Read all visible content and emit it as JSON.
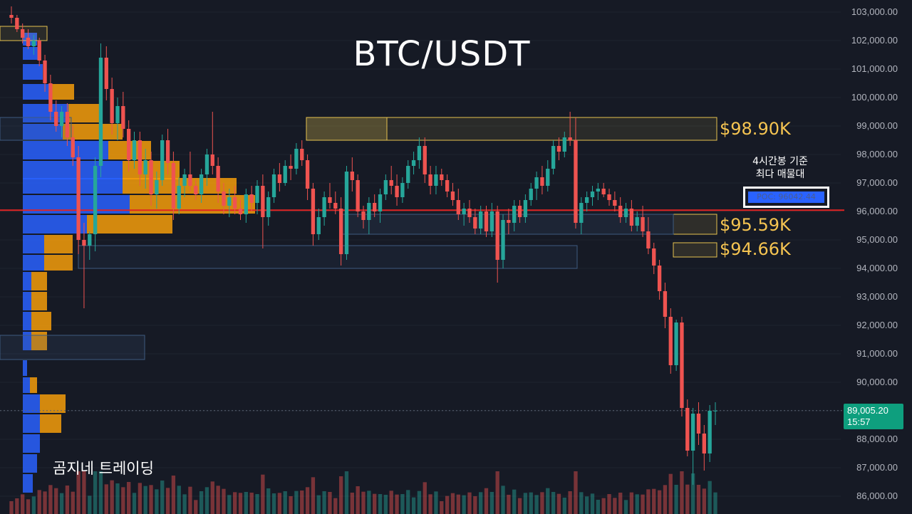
{
  "chart_data": {
    "type": "candlestick",
    "title": "BTC/USDT",
    "watermark": "곰지네 트레이딩",
    "price_axis": {
      "ylim": [
        85700,
        103300
      ],
      "ticks": [
        86000,
        87000,
        88000,
        89000,
        90000,
        91000,
        92000,
        93000,
        94000,
        95000,
        96000,
        97000,
        98000,
        99000,
        100000,
        101000,
        102000,
        103000
      ],
      "tick_labels": [
        "86,000.00",
        "87,000.00",
        "88,000.00",
        "89,000.00",
        "90,000.00",
        "91,000.00",
        "92,000.00",
        "93,000.00",
        "94,000.00",
        "95,000.00",
        "96,000.00",
        "97,000.00",
        "98,000.00",
        "99,000.00",
        "100,000.00",
        "101,000.00",
        "102,000.00",
        "103,000.00"
      ]
    },
    "current_price": {
      "value": 89005.2,
      "label": "89,005.20",
      "countdown": "15:57"
    },
    "poc": {
      "value": 96042.44,
      "label": "POC: 96042.44",
      "note_line1": "4시간봉 기준",
      "note_line2": "최다 매물대"
    },
    "zones": [
      {
        "label": "$98.90K",
        "from": 98500,
        "to": 99300
      },
      {
        "label": "$95.59K",
        "from": 95200,
        "to": 95900
      },
      {
        "label": "$94.66K",
        "from": 94400,
        "to": 94900
      }
    ],
    "candles": [
      [
        102900,
        103200,
        102600,
        102800
      ],
      [
        102800,
        102900,
        102300,
        102400
      ],
      [
        102400,
        102600,
        101900,
        102100
      ],
      [
        102100,
        102400,
        101700,
        101800
      ],
      [
        101800,
        102200,
        101500,
        102000
      ],
      [
        102000,
        102100,
        101100,
        101300
      ],
      [
        101300,
        101500,
        100200,
        100500
      ],
      [
        100500,
        100800,
        99200,
        99500
      ],
      [
        99500,
        99900,
        98800,
        99000
      ],
      [
        99000,
        99700,
        98600,
        99500
      ],
      [
        99500,
        99800,
        98300,
        98600
      ],
      [
        98600,
        99000,
        97600,
        97900
      ],
      [
        97900,
        98300,
        94500,
        95000
      ],
      [
        95000,
        95600,
        92600,
        94800
      ],
      [
        94800,
        95300,
        94300,
        95200
      ],
      [
        95200,
        97900,
        94600,
        97600
      ],
      [
        97600,
        101900,
        97200,
        101400
      ],
      [
        101400,
        101800,
        99900,
        100300
      ],
      [
        100300,
        100700,
        98700,
        99100
      ],
      [
        99100,
        100000,
        98500,
        99700
      ],
      [
        99700,
        100200,
        98600,
        98900
      ],
      [
        98900,
        99200,
        97400,
        97800
      ],
      [
        97800,
        98800,
        97500,
        98500
      ],
      [
        98500,
        98800,
        96900,
        97300
      ],
      [
        97300,
        98200,
        96800,
        97800
      ],
      [
        97800,
        98100,
        96200,
        96600
      ],
      [
        96600,
        97400,
        96100,
        97100
      ],
      [
        97100,
        98700,
        96900,
        98500
      ],
      [
        98500,
        98900,
        97300,
        97700
      ],
      [
        97700,
        98100,
        95700,
        96100
      ],
      [
        96100,
        97200,
        95900,
        96900
      ],
      [
        96900,
        97500,
        96500,
        97300
      ],
      [
        97300,
        98100,
        96700,
        96900
      ],
      [
        96900,
        97100,
        96400,
        96600
      ],
      [
        96600,
        97500,
        96300,
        97300
      ],
      [
        97300,
        98200,
        96900,
        98000
      ],
      [
        98000,
        99500,
        97300,
        97600
      ],
      [
        97600,
        97900,
        96300,
        96700
      ],
      [
        96700,
        97000,
        95900,
        96200
      ],
      [
        96200,
        96800,
        95800,
        96500
      ],
      [
        96500,
        96900,
        95900,
        96100
      ],
      [
        96100,
        96400,
        95700,
        95900
      ],
      [
        95900,
        96800,
        95600,
        96600
      ],
      [
        96600,
        96900,
        96000,
        96300
      ],
      [
        96300,
        97100,
        95900,
        96900
      ],
      [
        96900,
        97300,
        94700,
        95800
      ],
      [
        95800,
        96700,
        95500,
        96500
      ],
      [
        96500,
        97500,
        96300,
        97300
      ],
      [
        97300,
        97700,
        96700,
        97000
      ],
      [
        97000,
        97800,
        96900,
        97600
      ],
      [
        97600,
        98000,
        97100,
        97500
      ],
      [
        97500,
        98400,
        97300,
        98200
      ],
      [
        98200,
        98500,
        97600,
        97800
      ],
      [
        97800,
        98000,
        96400,
        96800
      ],
      [
        96800,
        97000,
        94800,
        95200
      ],
      [
        95200,
        96100,
        95000,
        95800
      ],
      [
        95800,
        96700,
        95500,
        96500
      ],
      [
        96500,
        97000,
        96100,
        96300
      ],
      [
        96300,
        96700,
        95900,
        96100
      ],
      [
        96100,
        96500,
        94100,
        94500
      ],
      [
        94500,
        97600,
        94300,
        97400
      ],
      [
        97400,
        97900,
        96700,
        97100
      ],
      [
        97100,
        97300,
        95800,
        96000
      ],
      [
        96000,
        96200,
        95400,
        95700
      ],
      [
        95700,
        96500,
        95200,
        96300
      ],
      [
        96300,
        96600,
        95800,
        96000
      ],
      [
        96000,
        96800,
        95600,
        96600
      ],
      [
        96600,
        97300,
        96400,
        97100
      ],
      [
        97100,
        97600,
        96600,
        96900
      ],
      [
        96900,
        97300,
        96200,
        96500
      ],
      [
        96500,
        97200,
        96300,
        97000
      ],
      [
        97000,
        97800,
        96800,
        97600
      ],
      [
        97600,
        98100,
        97300,
        97800
      ],
      [
        97800,
        98600,
        97500,
        98300
      ],
      [
        98300,
        98600,
        97000,
        97300
      ],
      [
        97300,
        97600,
        96600,
        96900
      ],
      [
        96900,
        97600,
        96600,
        97300
      ],
      [
        97300,
        97500,
        96900,
        97100
      ],
      [
        97100,
        97300,
        96500,
        96700
      ],
      [
        96700,
        97000,
        96200,
        96400
      ],
      [
        96400,
        96800,
        95700,
        95900
      ],
      [
        95900,
        96300,
        95500,
        96100
      ],
      [
        96100,
        96400,
        95600,
        95800
      ],
      [
        95800,
        96100,
        95200,
        95400
      ],
      [
        95400,
        96200,
        95200,
        96000
      ],
      [
        96000,
        96200,
        95100,
        95300
      ],
      [
        95300,
        96300,
        95100,
        96000
      ],
      [
        96000,
        96200,
        93500,
        94300
      ],
      [
        94300,
        95900,
        94000,
        95700
      ],
      [
        95700,
        96100,
        95200,
        95600
      ],
      [
        95600,
        96400,
        95300,
        96200
      ],
      [
        96200,
        96400,
        95600,
        95800
      ],
      [
        95800,
        96600,
        95600,
        96400
      ],
      [
        96400,
        97000,
        96200,
        96800
      ],
      [
        96800,
        97400,
        96400,
        97200
      ],
      [
        97200,
        97600,
        96600,
        96900
      ],
      [
        96900,
        97800,
        96700,
        97500
      ],
      [
        97500,
        98500,
        97300,
        98300
      ],
      [
        98300,
        98600,
        97800,
        98100
      ],
      [
        98100,
        98800,
        97900,
        98600
      ],
      [
        98600,
        99500,
        98300,
        98500
      ],
      [
        98500,
        99300,
        95400,
        95600
      ],
      [
        95600,
        96500,
        95200,
        96300
      ],
      [
        96300,
        96700,
        96000,
        96500
      ],
      [
        96500,
        96900,
        96200,
        96700
      ],
      [
        96700,
        97000,
        96400,
        96800
      ],
      [
        96800,
        97000,
        96500,
        96600
      ],
      [
        96600,
        96800,
        96200,
        96400
      ],
      [
        96400,
        96700,
        96000,
        96200
      ],
      [
        96200,
        96500,
        95600,
        95800
      ],
      [
        95800,
        96300,
        95600,
        96100
      ],
      [
        96100,
        96400,
        95300,
        95500
      ],
      [
        95500,
        96000,
        95300,
        95800
      ],
      [
        95800,
        96200,
        95100,
        95300
      ],
      [
        95300,
        95800,
        94500,
        94700
      ],
      [
        94700,
        94900,
        93800,
        94100
      ],
      [
        94100,
        94300,
        92900,
        93200
      ],
      [
        93200,
        93500,
        91900,
        92300
      ],
      [
        92300,
        92600,
        90300,
        90600
      ],
      [
        90600,
        92200,
        90400,
        92100
      ],
      [
        92100,
        92300,
        88800,
        89100
      ],
      [
        89100,
        89400,
        87400,
        87600
      ],
      [
        87600,
        89100,
        86400,
        88900
      ],
      [
        88900,
        89300,
        87800,
        88200
      ],
      [
        88200,
        88500,
        86900,
        87500
      ],
      [
        87500,
        89200,
        87200,
        89000
      ],
      [
        89000,
        89300,
        88500,
        89005
      ]
    ],
    "x_start": 16,
    "x_end": 1004
  },
  "colors": {
    "background": "#161a25",
    "up": "#26a69a",
    "down": "#ef5350",
    "zone_border": "#e6c24f",
    "poc_line": "#e02424",
    "poc_badge": "#2962ff",
    "price_tag": "#0e9f7e",
    "label_yellow": "#f5c451"
  }
}
